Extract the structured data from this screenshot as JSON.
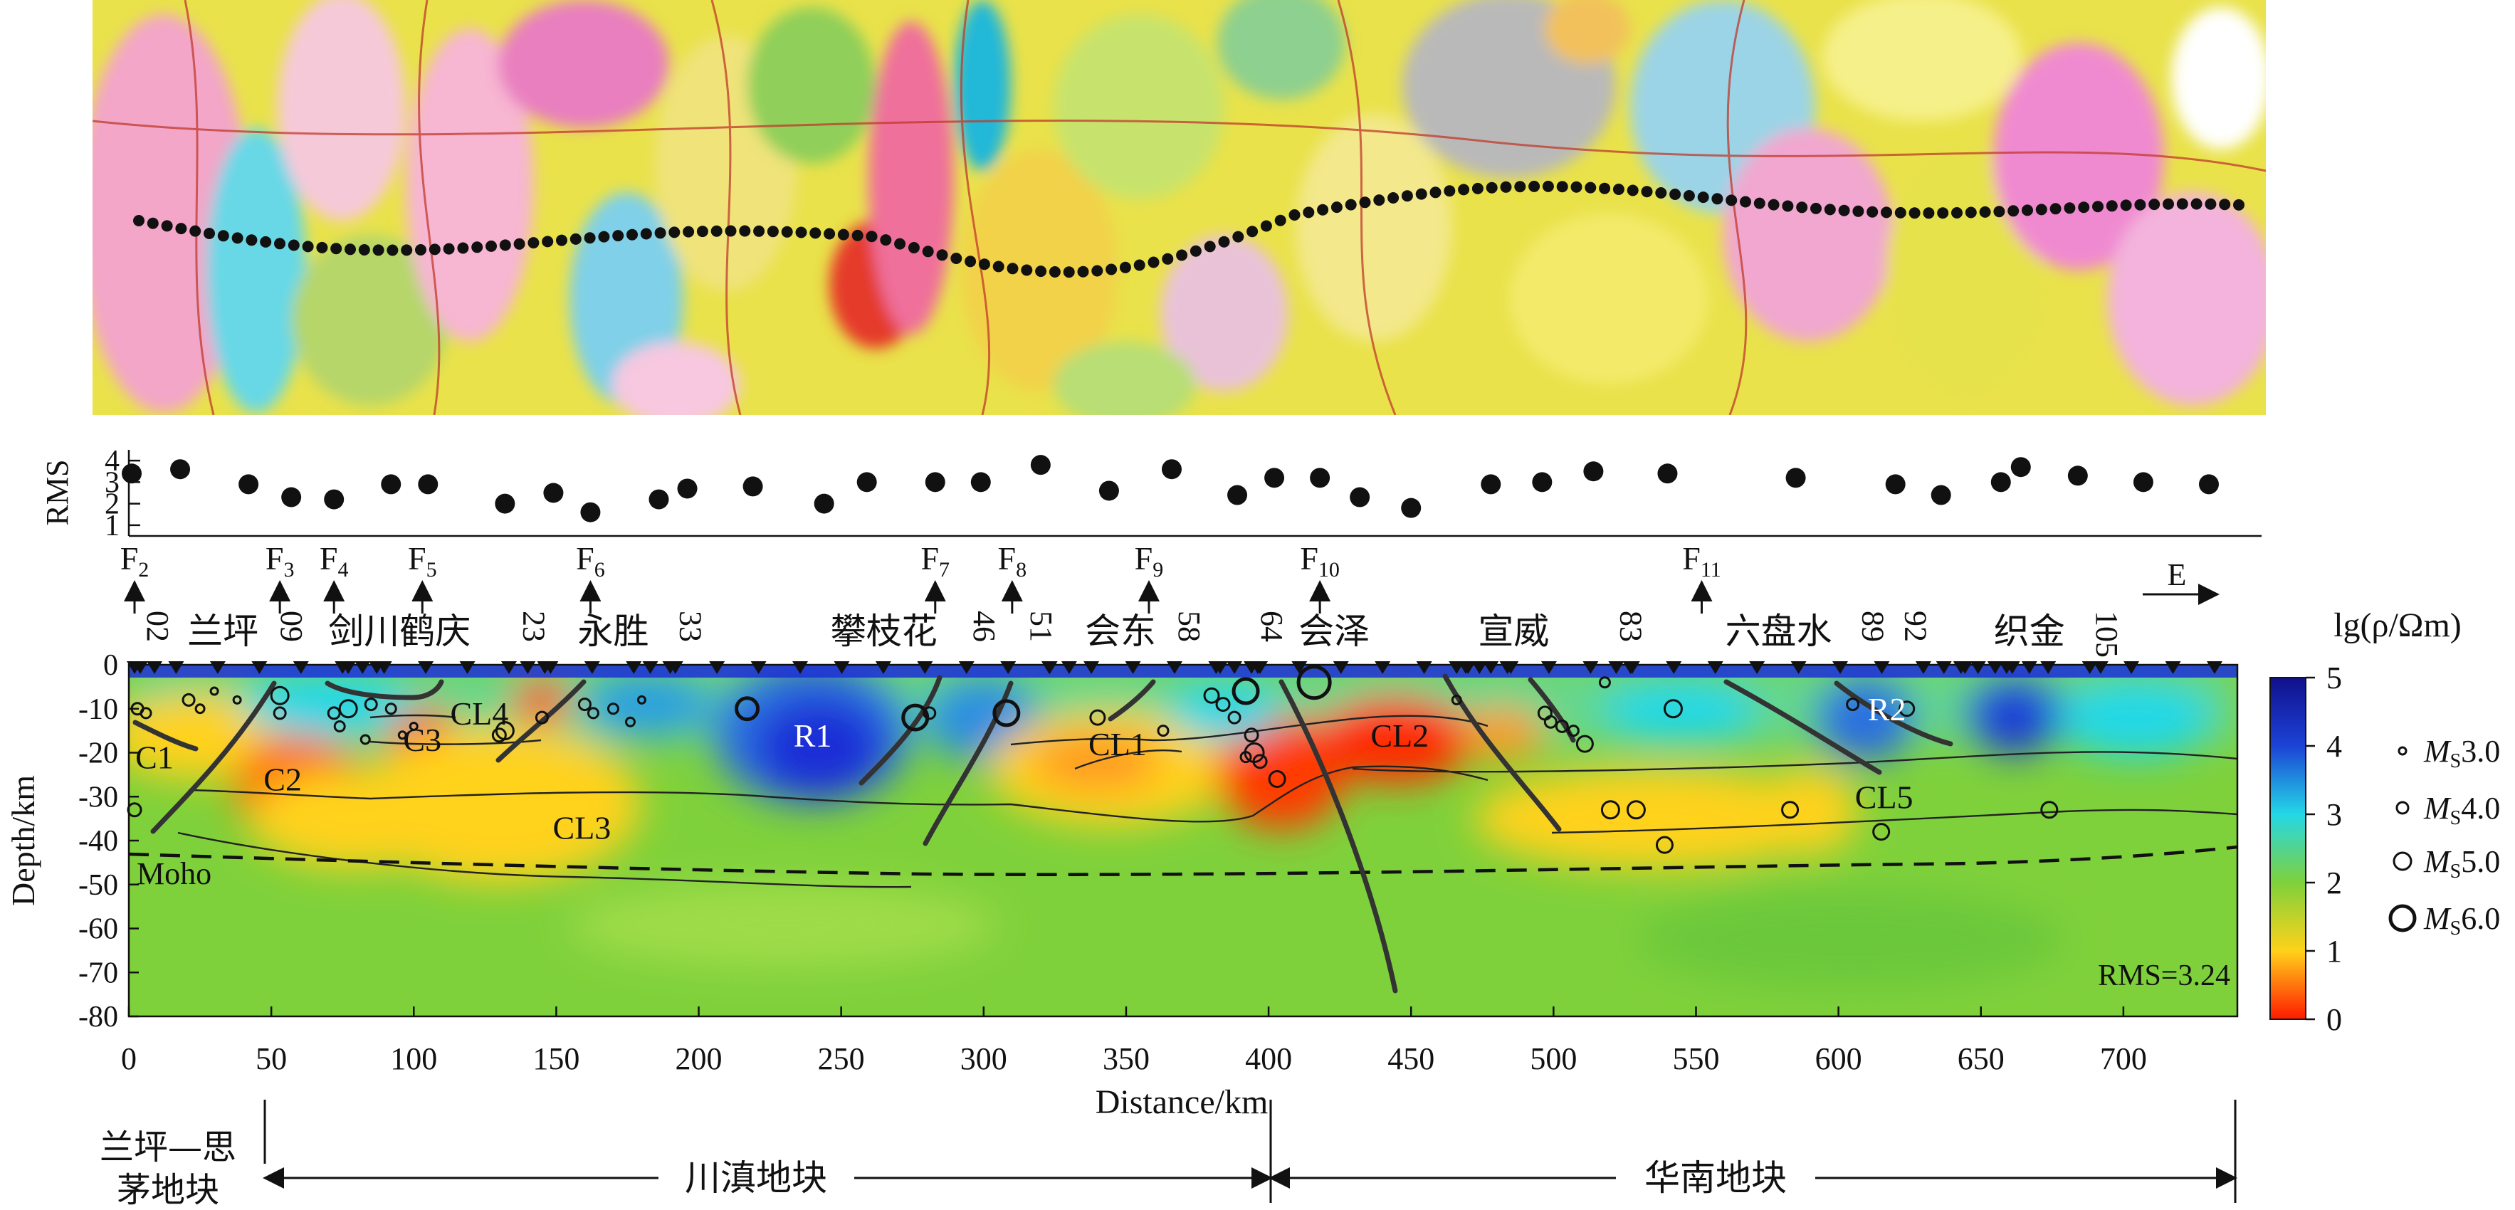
{
  "rms_panel": {
    "ylabel": "RMS",
    "y_ticks": [
      "1",
      "2",
      "3",
      "4"
    ],
    "ylim": [
      1,
      4.5
    ],
    "points": [
      {
        "x": 1,
        "y": 3.4
      },
      {
        "x": 18,
        "y": 3.6
      },
      {
        "x": 42,
        "y": 2.9
      },
      {
        "x": 57,
        "y": 2.3
      },
      {
        "x": 72,
        "y": 2.2
      },
      {
        "x": 92,
        "y": 2.9
      },
      {
        "x": 105,
        "y": 2.9
      },
      {
        "x": 132,
        "y": 2.0
      },
      {
        "x": 149,
        "y": 2.5
      },
      {
        "x": 162,
        "y": 1.6
      },
      {
        "x": 186,
        "y": 2.2
      },
      {
        "x": 196,
        "y": 2.7
      },
      {
        "x": 219,
        "y": 2.8
      },
      {
        "x": 244,
        "y": 2.0
      },
      {
        "x": 259,
        "y": 3.0
      },
      {
        "x": 283,
        "y": 3.0
      },
      {
        "x": 299,
        "y": 3.0
      },
      {
        "x": 320,
        "y": 3.8
      },
      {
        "x": 344,
        "y": 2.6
      },
      {
        "x": 366,
        "y": 3.6
      },
      {
        "x": 389,
        "y": 2.4
      },
      {
        "x": 402,
        "y": 3.2
      },
      {
        "x": 418,
        "y": 3.2
      },
      {
        "x": 432,
        "y": 2.3
      },
      {
        "x": 450,
        "y": 1.8
      },
      {
        "x": 478,
        "y": 2.9
      },
      {
        "x": 496,
        "y": 3.0
      },
      {
        "x": 514,
        "y": 3.5
      },
      {
        "x": 540,
        "y": 3.4
      },
      {
        "x": 585,
        "y": 3.2
      },
      {
        "x": 620,
        "y": 2.9
      },
      {
        "x": 636,
        "y": 2.4
      },
      {
        "x": 657,
        "y": 3.0
      },
      {
        "x": 664,
        "y": 3.7
      },
      {
        "x": 684,
        "y": 3.3
      },
      {
        "x": 707,
        "y": 3.0
      },
      {
        "x": 730,
        "y": 2.9
      }
    ]
  },
  "faults": [
    {
      "num": "2",
      "x": 2
    },
    {
      "num": "3",
      "x": 53
    },
    {
      "num": "4",
      "x": 72
    },
    {
      "num": "5",
      "x": 103
    },
    {
      "num": "6",
      "x": 162
    },
    {
      "num": "7",
      "x": 283
    },
    {
      "num": "8",
      "x": 310
    },
    {
      "num": "9",
      "x": 358
    },
    {
      "num": "10",
      "x": 418
    },
    {
      "num": "11",
      "x": 552
    }
  ],
  "fault_prefix": "F",
  "direction_label": "E",
  "places": [
    {
      "name": "兰坪",
      "x": 33
    },
    {
      "name": "剑川鹤庆",
      "x": 95
    },
    {
      "name": "永胜",
      "x": 170
    },
    {
      "name": "攀枝花",
      "x": 265
    },
    {
      "name": "会东",
      "x": 348
    },
    {
      "name": "会泽",
      "x": 423
    },
    {
      "name": "宣威",
      "x": 486
    },
    {
      "name": "六盘水",
      "x": 579
    },
    {
      "name": "织金",
      "x": 667
    }
  ],
  "station_numbers": [
    {
      "n": "02",
      "x": 3
    },
    {
      "n": "09",
      "x": 50
    },
    {
      "n": "23",
      "x": 135
    },
    {
      "n": "33",
      "x": 190
    },
    {
      "n": "46",
      "x": 293
    },
    {
      "n": "51",
      "x": 313
    },
    {
      "n": "58",
      "x": 365
    },
    {
      "n": "64",
      "x": 394
    },
    {
      "n": "83",
      "x": 520
    },
    {
      "n": "89",
      "x": 605
    },
    {
      "n": "92",
      "x": 620
    },
    {
      "n": "105",
      "x": 687
    }
  ],
  "section": {
    "ylabel": "Depth/km",
    "xlabel": "Distance/km",
    "x_ticks": [
      "0",
      "50",
      "100",
      "150",
      "200",
      "250",
      "300",
      "350",
      "400",
      "450",
      "500",
      "550",
      "600",
      "650",
      "700"
    ],
    "y_ticks": [
      "0",
      "-10",
      "-20",
      "-30",
      "-40",
      "-50",
      "-60",
      "-70",
      "-80"
    ],
    "xlim": [
      0,
      740
    ],
    "ylim": [
      -80,
      0
    ],
    "rms_label": "RMS=3.24",
    "moho_label": "Moho",
    "anomalies": [
      {
        "label": "R1",
        "x": 240,
        "y": -16,
        "color": "#ffffff"
      },
      {
        "label": "R2",
        "x": 617,
        "y": -10,
        "color": "#ffffff"
      },
      {
        "label": "C1",
        "x": 9,
        "y": -21,
        "color": "#111111"
      },
      {
        "label": "C2",
        "x": 54,
        "y": -26,
        "color": "#111111"
      },
      {
        "label": "C3",
        "x": 103,
        "y": -17,
        "color": "#111111"
      },
      {
        "label": "CL4",
        "x": 123,
        "y": -11,
        "color": "#111111"
      },
      {
        "label": "CL3",
        "x": 159,
        "y": -37,
        "color": "#111111"
      },
      {
        "label": "CL1",
        "x": 347,
        "y": -18,
        "color": "#111111"
      },
      {
        "label": "CL2",
        "x": 446,
        "y": -16,
        "color": "#111111"
      },
      {
        "label": "CL5",
        "x": 616,
        "y": -30,
        "color": "#111111"
      }
    ]
  },
  "colorbar": {
    "title": "lg(ρ/Ωm)",
    "ticks": [
      "0",
      "1",
      "2",
      "3",
      "4",
      "5"
    ],
    "stops": [
      "#ff1a00",
      "#ffd21a",
      "#7fd13b",
      "#24d8e6",
      "#1c43d6",
      "#10108c"
    ]
  },
  "magnitude_legend": [
    {
      "label": "3.0",
      "r": 5
    },
    {
      "label": "4.0",
      "r": 8
    },
    {
      "label": "5.0",
      "r": 12
    },
    {
      "label": "6.0",
      "r": 17
    }
  ],
  "magnitude_prefix": "M",
  "magnitude_sub": "S",
  "blocks": [
    {
      "name": "兰坪—思",
      "name2": "茅地块"
    },
    {
      "name": "川滇地块"
    },
    {
      "name": "华南地块"
    }
  ]
}
